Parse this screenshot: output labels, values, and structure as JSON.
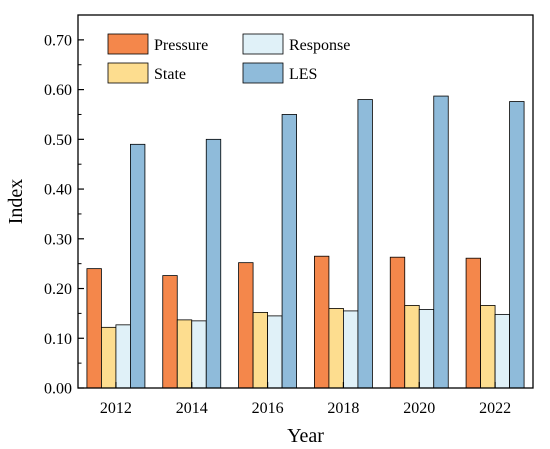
{
  "chart_data": {
    "type": "bar",
    "xlabel": "Year",
    "ylabel": "Index",
    "ylim": [
      0,
      0.75
    ],
    "yticks": [
      "0.00",
      "0.10",
      "0.20",
      "0.30",
      "0.40",
      "0.50",
      "0.60",
      "0.70"
    ],
    "categories": [
      "2012",
      "2014",
      "2016",
      "2018",
      "2020",
      "2022"
    ],
    "legend_position": "top-left",
    "grid": false,
    "series": [
      {
        "name": "Pressure",
        "color": "#F4874B",
        "values": [
          0.24,
          0.226,
          0.252,
          0.265,
          0.263,
          0.261
        ]
      },
      {
        "name": "State",
        "color": "#FDDD8F",
        "values": [
          0.122,
          0.137,
          0.152,
          0.16,
          0.166,
          0.166
        ]
      },
      {
        "name": "Response",
        "color": "#E0F1F8",
        "values": [
          0.127,
          0.135,
          0.145,
          0.155,
          0.158,
          0.148
        ]
      },
      {
        "name": "LES",
        "color": "#8FBBDA",
        "values": [
          0.49,
          0.5,
          0.55,
          0.58,
          0.587,
          0.576
        ]
      }
    ]
  }
}
